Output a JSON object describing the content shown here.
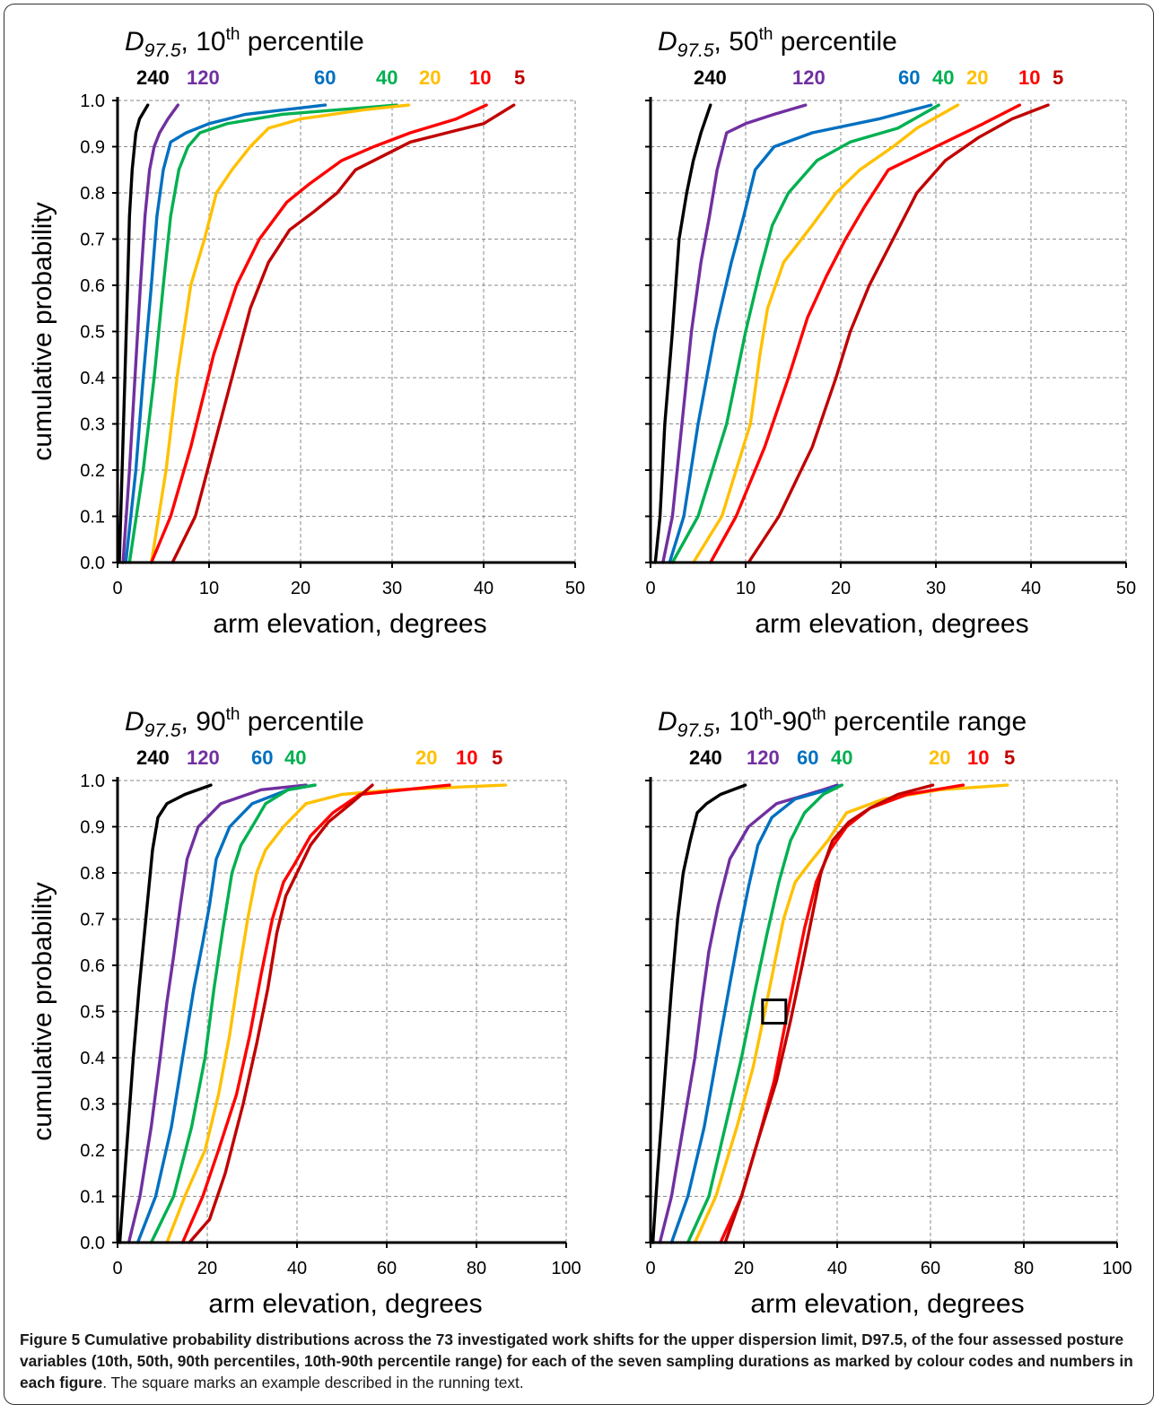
{
  "caption": {
    "label": "Figure 5",
    "bold_part": " Cumulative probability distributions across the 73 investigated work shifts for the upper dispersion limit, D97.5, of the four assessed posture variables (10th, 50th, 90th percentiles, 10th-90th percentile range) for each of the seven sampling durations as marked by colour codes and numbers in each figure",
    "regular_part": ". The square marks an example described in the running text."
  },
  "colors": {
    "240": "#000000",
    "120": "#7030a0",
    "60": "#0070c0",
    "40": "#00b050",
    "20": "#ffc000",
    "10": "#ff0000",
    "5": "#c00000"
  },
  "chart_data": [
    {
      "type": "line",
      "title": "D97.5, 10th percentile",
      "xlabel": "arm elevation, degrees",
      "ylabel": "cumulative probability",
      "xlim": [
        0,
        50
      ],
      "xticks": [
        0,
        10,
        20,
        30,
        40,
        50
      ],
      "ylim": [
        0,
        1
      ],
      "yticks": [
        0,
        0.1,
        0.2,
        0.3,
        0.4,
        0.5,
        0.6,
        0.7,
        0.8,
        0.9,
        1.0
      ],
      "grid": true,
      "legend_labels": [
        {
          "text": "240",
          "series": "240"
        },
        {
          "text": "120",
          "series": "120"
        },
        {
          "text": "60",
          "series": "60"
        },
        {
          "text": "40",
          "series": "40"
        },
        {
          "text": "20",
          "series": "20"
        },
        {
          "text": "10",
          "series": "10"
        },
        {
          "text": "5",
          "series": "5"
        }
      ],
      "series": [
        {
          "name": "240",
          "x": [
            0.2,
            0.5,
            0.8,
            1.1,
            1.3,
            1.6,
            2.0,
            2.4,
            3.3
          ],
          "y": [
            0,
            0.2,
            0.4,
            0.6,
            0.75,
            0.85,
            0.93,
            0.96,
            0.99
          ]
        },
        {
          "name": "120",
          "x": [
            0.6,
            1.3,
            1.9,
            2.5,
            3.0,
            3.5,
            4.0,
            4.6,
            5.5,
            6.6
          ],
          "y": [
            0,
            0.2,
            0.4,
            0.6,
            0.75,
            0.85,
            0.9,
            0.93,
            0.96,
            0.99
          ]
        },
        {
          "name": "60",
          "x": [
            0.9,
            2.0,
            2.8,
            3.7,
            4.3,
            5.0,
            5.8,
            7.5,
            10.0,
            14.0,
            22.7
          ],
          "y": [
            0,
            0.2,
            0.4,
            0.6,
            0.75,
            0.85,
            0.91,
            0.93,
            0.95,
            0.97,
            0.99
          ]
        },
        {
          "name": "40",
          "x": [
            1.3,
            2.8,
            4.0,
            5.0,
            5.8,
            6.7,
            7.7,
            9.0,
            12.0,
            18.0,
            30.5
          ],
          "y": [
            0,
            0.2,
            0.4,
            0.6,
            0.75,
            0.85,
            0.9,
            0.93,
            0.95,
            0.97,
            0.99
          ]
        },
        {
          "name": "20",
          "x": [
            3.7,
            5.3,
            6.5,
            8.0,
            9.5,
            10.8,
            12.5,
            14.5,
            16.5,
            20.0,
            27.0,
            31.8
          ],
          "y": [
            0,
            0.2,
            0.4,
            0.6,
            0.7,
            0.8,
            0.85,
            0.9,
            0.94,
            0.96,
            0.98,
            0.99
          ]
        },
        {
          "name": "10",
          "x": [
            3.7,
            5.8,
            8.0,
            10.5,
            13.0,
            15.5,
            18.5,
            21.0,
            24.5,
            28.0,
            32.0,
            37.0,
            40.3
          ],
          "y": [
            0,
            0.1,
            0.25,
            0.45,
            0.6,
            0.7,
            0.78,
            0.82,
            0.87,
            0.9,
            0.93,
            0.96,
            0.99
          ]
        },
        {
          "name": "5",
          "x": [
            6.0,
            8.5,
            10.5,
            12.5,
            14.5,
            16.5,
            18.8,
            21.5,
            24.0,
            26.0,
            29.0,
            32.0,
            36.0,
            40.0,
            43.3
          ],
          "y": [
            0,
            0.1,
            0.25,
            0.4,
            0.55,
            0.65,
            0.72,
            0.76,
            0.8,
            0.85,
            0.88,
            0.91,
            0.93,
            0.95,
            0.99
          ]
        }
      ],
      "annotations": []
    },
    {
      "type": "line",
      "title": "D97.5, 50th percentile",
      "xlabel": "arm elevation, degrees",
      "ylabel": "",
      "xlim": [
        0,
        50
      ],
      "xticks": [
        0,
        10,
        20,
        30,
        40,
        50
      ],
      "ylim": [
        0,
        1
      ],
      "yticks": [
        0,
        0.1,
        0.2,
        0.3,
        0.4,
        0.5,
        0.6,
        0.7,
        0.8,
        0.9,
        1.0
      ],
      "grid": true,
      "legend_labels": [
        {
          "text": "240",
          "series": "240"
        },
        {
          "text": "120",
          "series": "120"
        },
        {
          "text": "60",
          "series": "60"
        },
        {
          "text": "40",
          "series": "40"
        },
        {
          "text": "20",
          "series": "20"
        },
        {
          "text": "10",
          "series": "10"
        },
        {
          "text": "5",
          "series": "5"
        }
      ],
      "series": [
        {
          "name": "240",
          "x": [
            0.5,
            1.0,
            1.5,
            2.3,
            3.0,
            3.8,
            4.5,
            5.3,
            6.3
          ],
          "y": [
            0,
            0.1,
            0.3,
            0.5,
            0.7,
            0.8,
            0.87,
            0.93,
            0.99
          ]
        },
        {
          "name": "120",
          "x": [
            1.3,
            2.3,
            3.3,
            4.3,
            5.3,
            6.2,
            7.0,
            8.0,
            10.0,
            13.0,
            16.3
          ],
          "y": [
            0,
            0.1,
            0.3,
            0.5,
            0.65,
            0.75,
            0.85,
            0.93,
            0.95,
            0.97,
            0.99
          ]
        },
        {
          "name": "60",
          "x": [
            2.0,
            3.5,
            5.0,
            6.8,
            8.5,
            9.8,
            11.0,
            13.0,
            17.0,
            24.0,
            29.5
          ],
          "y": [
            0,
            0.1,
            0.3,
            0.5,
            0.65,
            0.75,
            0.85,
            0.9,
            0.93,
            0.96,
            0.99
          ]
        },
        {
          "name": "40",
          "x": [
            2.3,
            5.0,
            8.0,
            10.0,
            11.5,
            12.8,
            14.5,
            17.5,
            21.0,
            26.0,
            30.3
          ],
          "y": [
            0,
            0.1,
            0.3,
            0.5,
            0.63,
            0.73,
            0.8,
            0.87,
            0.91,
            0.94,
            0.99
          ]
        },
        {
          "name": "20",
          "x": [
            4.5,
            7.5,
            10.5,
            11.5,
            12.3,
            14.0,
            17.0,
            19.5,
            22.0,
            25.5,
            28.0,
            32.3
          ],
          "y": [
            0,
            0.1,
            0.3,
            0.45,
            0.55,
            0.65,
            0.73,
            0.8,
            0.85,
            0.9,
            0.94,
            0.99
          ]
        },
        {
          "name": "10",
          "x": [
            6.3,
            9.0,
            12.0,
            14.5,
            16.5,
            18.5,
            20.5,
            22.5,
            25.0,
            30.0,
            35.0,
            38.8
          ],
          "y": [
            0,
            0.1,
            0.25,
            0.4,
            0.53,
            0.62,
            0.7,
            0.77,
            0.85,
            0.9,
            0.95,
            0.99
          ]
        },
        {
          "name": "5",
          "x": [
            10.3,
            13.5,
            17.0,
            19.5,
            21.0,
            23.0,
            25.5,
            28.0,
            31.0,
            34.5,
            38.0,
            41.8
          ],
          "y": [
            0,
            0.1,
            0.25,
            0.4,
            0.5,
            0.6,
            0.7,
            0.8,
            0.87,
            0.92,
            0.96,
            0.99
          ]
        }
      ],
      "annotations": []
    },
    {
      "type": "line",
      "title": "D97.5, 90th percentile",
      "xlabel": "arm elevation, degrees",
      "ylabel": "cumulative probability",
      "xlim": [
        0,
        100
      ],
      "xticks": [
        0,
        20,
        40,
        60,
        80,
        100
      ],
      "ylim": [
        0,
        1
      ],
      "yticks": [
        0,
        0.1,
        0.2,
        0.3,
        0.4,
        0.5,
        0.6,
        0.7,
        0.8,
        0.9,
        1.0
      ],
      "grid": true,
      "legend_labels": [
        {
          "text": "240",
          "series": "240"
        },
        {
          "text": "120",
          "series": "120"
        },
        {
          "text": "60",
          "series": "60"
        },
        {
          "text": "40",
          "series": "40"
        },
        {
          "text": "20",
          "series": "20"
        },
        {
          "text": "10",
          "series": "10"
        },
        {
          "text": "5",
          "series": "5"
        }
      ],
      "series": [
        {
          "name": "240",
          "x": [
            0.5,
            2.0,
            3.5,
            4.8,
            5.8,
            6.8,
            7.8,
            9.0,
            11.0,
            15.0,
            20.8
          ],
          "y": [
            0,
            0.2,
            0.4,
            0.55,
            0.65,
            0.75,
            0.85,
            0.92,
            0.95,
            0.97,
            0.99
          ]
        },
        {
          "name": "120",
          "x": [
            2.5,
            5.0,
            7.5,
            9.5,
            11.0,
            12.5,
            14.0,
            15.5,
            18.0,
            23.0,
            32.0,
            42.0
          ],
          "y": [
            0,
            0.1,
            0.25,
            0.4,
            0.52,
            0.62,
            0.73,
            0.83,
            0.9,
            0.95,
            0.98,
            0.99
          ]
        },
        {
          "name": "60",
          "x": [
            4.5,
            8.5,
            12.0,
            14.5,
            17.0,
            19.0,
            20.5,
            22.0,
            25.0,
            30.0,
            38.0,
            44.0
          ],
          "y": [
            0,
            0.1,
            0.25,
            0.4,
            0.55,
            0.65,
            0.73,
            0.83,
            0.9,
            0.95,
            0.98,
            0.99
          ]
        },
        {
          "name": "40",
          "x": [
            7.5,
            12.5,
            16.5,
            19.5,
            21.5,
            23.5,
            25.5,
            27.5,
            30.0,
            33.0,
            38.0,
            44.0
          ],
          "y": [
            0,
            0.1,
            0.25,
            0.4,
            0.55,
            0.68,
            0.8,
            0.86,
            0.9,
            0.95,
            0.98,
            0.99
          ]
        },
        {
          "name": "20",
          "x": [
            11.0,
            15.0,
            19.5,
            22.5,
            25.0,
            27.0,
            29.0,
            31.0,
            33.0,
            37.0,
            42.0,
            50.0,
            62.0,
            86.5
          ],
          "y": [
            0,
            0.1,
            0.2,
            0.32,
            0.45,
            0.58,
            0.7,
            0.8,
            0.85,
            0.9,
            0.95,
            0.97,
            0.98,
            0.99
          ]
        },
        {
          "name": "10",
          "x": [
            14.5,
            19.0,
            22.5,
            26.5,
            29.5,
            32.0,
            34.5,
            37.0,
            39.5,
            43.0,
            48.0,
            54.0,
            74.0
          ],
          "y": [
            0,
            0.1,
            0.2,
            0.32,
            0.45,
            0.58,
            0.7,
            0.78,
            0.82,
            0.88,
            0.93,
            0.97,
            0.99
          ]
        },
        {
          "name": "5",
          "x": [
            16.0,
            20.5,
            24.0,
            28.0,
            31.0,
            33.5,
            35.5,
            37.5,
            40.0,
            43.0,
            47.0,
            52.0,
            56.8
          ],
          "y": [
            0,
            0.05,
            0.15,
            0.3,
            0.43,
            0.55,
            0.67,
            0.75,
            0.8,
            0.86,
            0.91,
            0.95,
            0.99
          ]
        }
      ],
      "annotations": []
    },
    {
      "type": "line",
      "title": "D97.5, 10th-90th percentile range",
      "xlabel": "arm elevation, degrees",
      "ylabel": "",
      "xlim": [
        0,
        100
      ],
      "xticks": [
        0,
        20,
        40,
        60,
        80,
        100
      ],
      "ylim": [
        0,
        1
      ],
      "yticks": [
        0,
        0.1,
        0.2,
        0.3,
        0.4,
        0.5,
        0.6,
        0.7,
        0.8,
        0.9,
        1.0
      ],
      "grid": true,
      "legend_labels": [
        {
          "text": "240",
          "series": "240"
        },
        {
          "text": "120",
          "series": "120"
        },
        {
          "text": "60",
          "series": "60"
        },
        {
          "text": "40",
          "series": "40"
        },
        {
          "text": "20",
          "series": "20"
        },
        {
          "text": "10",
          "series": "10"
        },
        {
          "text": "5",
          "series": "5"
        }
      ],
      "series": [
        {
          "name": "240",
          "x": [
            0.5,
            1.5,
            3.0,
            4.5,
            5.8,
            7.0,
            8.5,
            10.0,
            12.0,
            15.0,
            20.3
          ],
          "y": [
            0,
            0.15,
            0.35,
            0.55,
            0.7,
            0.8,
            0.87,
            0.93,
            0.95,
            0.97,
            0.99
          ]
        },
        {
          "name": "120",
          "x": [
            2.0,
            4.5,
            7.0,
            9.5,
            11.0,
            12.5,
            14.5,
            17.0,
            21.0,
            27.0,
            37.0,
            40.0
          ],
          "y": [
            0,
            0.1,
            0.25,
            0.4,
            0.52,
            0.63,
            0.73,
            0.83,
            0.9,
            0.95,
            0.98,
            0.99
          ]
        },
        {
          "name": "60",
          "x": [
            4.5,
            8.0,
            11.5,
            14.5,
            17.0,
            19.0,
            21.0,
            23.0,
            26.0,
            31.0,
            38.0,
            41.0
          ],
          "y": [
            0,
            0.1,
            0.25,
            0.42,
            0.56,
            0.67,
            0.77,
            0.86,
            0.92,
            0.96,
            0.98,
            0.99
          ]
        },
        {
          "name": "40",
          "x": [
            8.0,
            12.5,
            16.0,
            19.5,
            22.5,
            25.0,
            27.5,
            30.0,
            33.0,
            37.0,
            41.0
          ],
          "y": [
            0,
            0.1,
            0.25,
            0.4,
            0.55,
            0.67,
            0.78,
            0.87,
            0.93,
            0.97,
            0.99
          ]
        },
        {
          "name": "20",
          "x": [
            9.5,
            14.0,
            18.5,
            22.0,
            24.5,
            26.5,
            28.5,
            31.0,
            34.0,
            38.0,
            42.0,
            50.0,
            62.0,
            76.5
          ],
          "y": [
            0,
            0.1,
            0.25,
            0.38,
            0.5,
            0.6,
            0.7,
            0.78,
            0.82,
            0.87,
            0.93,
            0.96,
            0.98,
            0.99
          ]
        },
        {
          "name": "10",
          "x": [
            15.0,
            19.5,
            23.0,
            26.5,
            29.0,
            31.0,
            33.0,
            35.5,
            38.5,
            42.0,
            47.0,
            55.0,
            67.0
          ],
          "y": [
            0,
            0.1,
            0.22,
            0.35,
            0.48,
            0.58,
            0.68,
            0.78,
            0.85,
            0.9,
            0.94,
            0.97,
            0.99
          ]
        },
        {
          "name": "5",
          "x": [
            16.0,
            19.5,
            23.0,
            27.0,
            30.0,
            32.5,
            34.5,
            36.5,
            39.0,
            42.5,
            47.0,
            53.0,
            60.5
          ],
          "y": [
            0,
            0.1,
            0.22,
            0.35,
            0.48,
            0.6,
            0.7,
            0.8,
            0.87,
            0.91,
            0.94,
            0.97,
            0.99
          ]
        }
      ],
      "annotations": [
        {
          "type": "square",
          "x": 26.5,
          "y": 0.5
        }
      ]
    }
  ]
}
